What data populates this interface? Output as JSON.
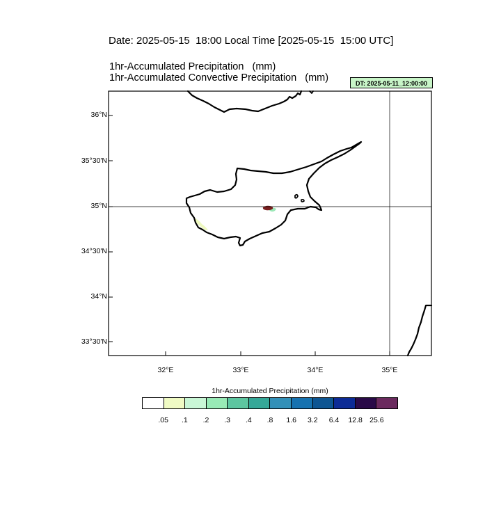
{
  "header": {
    "date_line": "Date: 2025-05-15  18:00 Local Time [2025-05-15  15:00 UTC]",
    "title_line_1": "1hr-Accumulated Precipitation   (mm)",
    "title_line_2": "1hr-Accumulated Convective Precipitation   (mm)",
    "dt_badge": "DT: 2025-05-11_12:00:00",
    "dt_badge_color": "#c8f5c8"
  },
  "map": {
    "region": "Cyprus",
    "lat_labels": [
      "36°N",
      "35°30'N",
      "35°N",
      "34°30'N",
      "34°N",
      "33°30'N"
    ],
    "lon_labels": [
      "32°E",
      "33°E",
      "34°E",
      "35°E"
    ],
    "lat_range": [
      33.23,
      36.27
    ],
    "lon_range": [
      31.23,
      35.55
    ],
    "reference_lines": {
      "lat": 35.0,
      "lon": 35.0
    },
    "coastline_color": "#000000",
    "precip_patches": [
      {
        "name": "heavy-precip-cell",
        "lon": 33.35,
        "lat": 35.0,
        "color": "#7a1f1f"
      },
      {
        "name": "light-precip-east",
        "lon": 33.45,
        "lat": 34.96,
        "color": "#9de8b8"
      },
      {
        "name": "light-precip-west",
        "lon": 32.5,
        "lat": 34.8,
        "color": "#eef9c0"
      }
    ]
  },
  "colorbar": {
    "title": "1hr-Accumulated Precipitation  (mm)",
    "colors": [
      "#ffffff",
      "#f0fbc4",
      "#c9f7d6",
      "#98eab6",
      "#5dc6a0",
      "#35a898",
      "#3290b8",
      "#1672b0",
      "#0d5592",
      "#0c2b96",
      "#2a0a48",
      "#6b2a5e"
    ],
    "labels": [
      ".05",
      ".1",
      ".2",
      ".3",
      ".4",
      ".8",
      "1.6",
      "3.2",
      "6.4",
      "12.8",
      "25.6"
    ]
  }
}
